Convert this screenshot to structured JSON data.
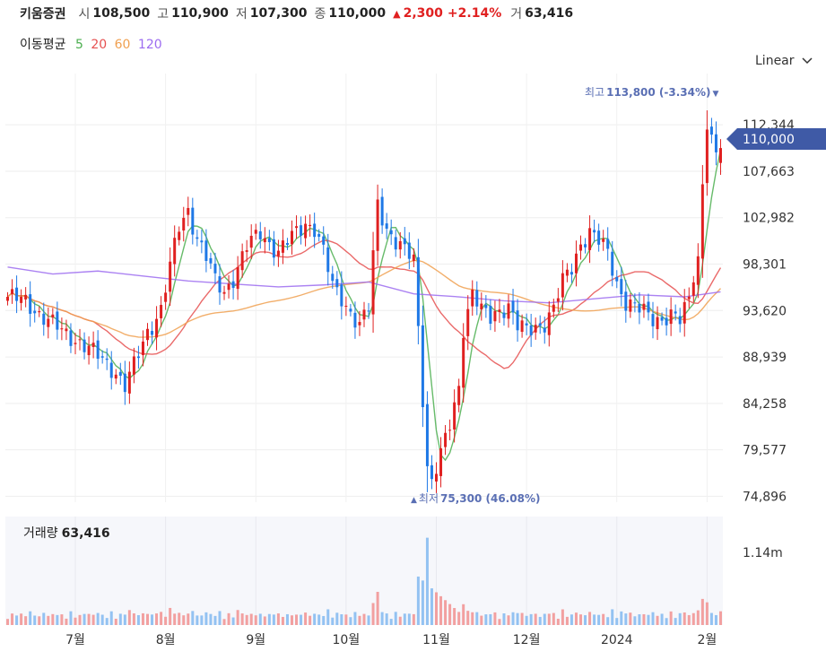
{
  "header": {
    "stock_name": "키움증권",
    "open_label": "시",
    "open": "108,500",
    "high_label": "고",
    "high": "110,900",
    "low_label": "저",
    "low": "107,300",
    "close_label": "종",
    "close": "110,000",
    "change_arrow": "▲",
    "change": "2,300",
    "change_pct": "+2.14%",
    "volume_label": "거",
    "volume": "63,416"
  },
  "ma_legend": {
    "title": "이동평균",
    "items": [
      {
        "label": "5",
        "color": "#4caf50"
      },
      {
        "label": "20",
        "color": "#e65050"
      },
      {
        "label": "60",
        "color": "#f0a050"
      },
      {
        "label": "120",
        "color": "#9c6cf0"
      }
    ]
  },
  "scale_selector": {
    "label": "Linear",
    "icon": "chevron-down-icon"
  },
  "colors": {
    "up": "#e02020",
    "down": "#1e78e6",
    "current_price_bg": "#3f5aa6",
    "annot": "#5a6fb4"
  },
  "volume_panel": {
    "title": "거래량",
    "value": "63,416",
    "max_label": "1.14m"
  },
  "annotations": {
    "high": {
      "label": "최고",
      "value": "113,800 (-3.34%)",
      "arrow": "▼"
    },
    "low": {
      "label": "최저",
      "value": "75,300 (46.08%)",
      "arrow": "▲"
    }
  },
  "current_price_tag": "110,000",
  "chart_data": {
    "type": "candlestick",
    "y_ticks": [
      "112,344",
      "107,663",
      "102,982",
      "98,301",
      "93,620",
      "88,939",
      "84,258",
      "79,577",
      "74,896"
    ],
    "y_tick_values": [
      112344,
      107663,
      102982,
      98301,
      93620,
      88939,
      84258,
      79577,
      74896
    ],
    "ylim": [
      74300,
      114800
    ],
    "x_ticks": [
      "7월",
      "8월",
      "9월",
      "10월",
      "11월",
      "12월",
      "2024",
      "2월"
    ],
    "x_tick_index": [
      15,
      35,
      55,
      75,
      95,
      115,
      135,
      155
    ],
    "close_path": [
      [
        0,
        95000
      ],
      [
        4,
        94500
      ],
      [
        8,
        93000
      ],
      [
        12,
        91500
      ],
      [
        16,
        90500
      ],
      [
        20,
        89000
      ],
      [
        24,
        87500
      ],
      [
        26,
        86000
      ],
      [
        28,
        88000
      ],
      [
        31,
        91500
      ],
      [
        34,
        93800
      ],
      [
        36,
        98000
      ],
      [
        38,
        102000
      ],
      [
        40,
        103800
      ],
      [
        42,
        101000
      ],
      [
        44,
        99000
      ],
      [
        46,
        96500
      ],
      [
        48,
        95500
      ],
      [
        50,
        97000
      ],
      [
        53,
        100000
      ],
      [
        56,
        101500
      ],
      [
        58,
        100500
      ],
      [
        60,
        99500
      ],
      [
        62,
        100500
      ],
      [
        64,
        101500
      ],
      [
        66,
        102500
      ],
      [
        68,
        102000
      ],
      [
        70,
        99500
      ],
      [
        72,
        96000
      ],
      [
        74,
        95000
      ],
      [
        76,
        93500
      ],
      [
        78,
        92000
      ],
      [
        80,
        93800
      ],
      [
        82,
        104500
      ],
      [
        84,
        102000
      ],
      [
        86,
        100500
      ],
      [
        88,
        99500
      ],
      [
        90,
        98800
      ],
      [
        92,
        85000
      ],
      [
        93,
        78000
      ],
      [
        94,
        76500
      ],
      [
        96,
        79000
      ],
      [
        98,
        82000
      ],
      [
        100,
        86000
      ],
      [
        101,
        92000
      ],
      [
        103,
        95500
      ],
      [
        105,
        93500
      ],
      [
        107,
        92800
      ],
      [
        109,
        93800
      ],
      [
        111,
        94200
      ],
      [
        113,
        92000
      ],
      [
        115,
        91500
      ],
      [
        117,
        92000
      ],
      [
        119,
        92500
      ],
      [
        121,
        93800
      ],
      [
        123,
        96500
      ],
      [
        125,
        98000
      ],
      [
        127,
        100500
      ],
      [
        129,
        101500
      ],
      [
        131,
        100500
      ],
      [
        133,
        99500
      ],
      [
        135,
        96500
      ],
      [
        137,
        94500
      ],
      [
        139,
        93800
      ],
      [
        141,
        93500
      ],
      [
        143,
        93000
      ],
      [
        145,
        92800
      ],
      [
        147,
        93000
      ],
      [
        149,
        92500
      ],
      [
        151,
        95000
      ],
      [
        152,
        97500
      ],
      [
        153,
        99000
      ],
      [
        154,
        106500
      ],
      [
        155,
        112500
      ],
      [
        156,
        110500
      ],
      [
        157,
        109000
      ],
      [
        158,
        110000
      ]
    ],
    "n_candles": 159,
    "moving_averages": [
      {
        "period": 5,
        "color": "#4caf50"
      },
      {
        "period": 20,
        "color": "#e65050"
      },
      {
        "period": 60,
        "color": "#f0a050"
      },
      {
        "period": 120,
        "color": "#9c6cf0",
        "path": [
          [
            0,
            98000
          ],
          [
            10,
            97300
          ],
          [
            20,
            97600
          ],
          [
            30,
            97100
          ],
          [
            40,
            96600
          ],
          [
            50,
            96300
          ],
          [
            60,
            96000
          ],
          [
            70,
            96200
          ],
          [
            80,
            96500
          ],
          [
            90,
            95300
          ],
          [
            100,
            95000
          ],
          [
            110,
            94600
          ],
          [
            120,
            94400
          ],
          [
            130,
            94800
          ],
          [
            140,
            95200
          ],
          [
            150,
            95000
          ],
          [
            158,
            95500
          ]
        ]
      }
    ],
    "volume_max": 1140000
  }
}
